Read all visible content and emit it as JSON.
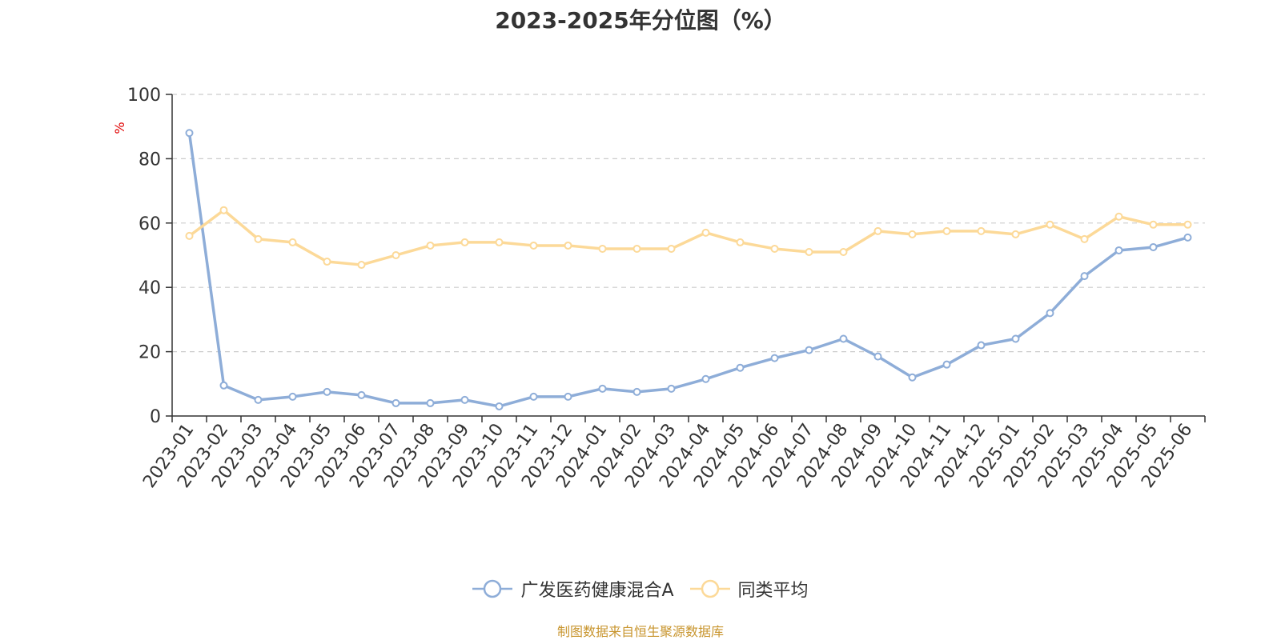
{
  "chart_data": {
    "type": "line",
    "title": "2023-2025年分位图（%）",
    "ylabel": "%",
    "xlabel": "",
    "ylim": [
      0,
      100
    ],
    "yticks": [
      0,
      20,
      40,
      60,
      80,
      100
    ],
    "grid": true,
    "legend_position": "bottom",
    "categories": [
      "2023-01",
      "2023-02",
      "2023-03",
      "2023-04",
      "2023-05",
      "2023-06",
      "2023-07",
      "2023-08",
      "2023-09",
      "2023-10",
      "2023-11",
      "2023-12",
      "2024-01",
      "2024-02",
      "2024-03",
      "2024-04",
      "2024-05",
      "2024-06",
      "2024-07",
      "2024-08",
      "2024-09",
      "2024-10",
      "2024-11",
      "2024-12",
      "2025-01",
      "2025-02",
      "2025-03",
      "2025-04",
      "2025-05",
      "2025-06"
    ],
    "series": [
      {
        "name": "广发医药健康混合A",
        "color": "#8eadd8",
        "values": [
          88,
          9.5,
          5,
          6,
          7.5,
          6.5,
          4,
          4,
          5,
          3,
          6,
          6,
          8.5,
          7.5,
          8.5,
          11.5,
          15,
          18,
          20.5,
          24,
          18.5,
          12,
          16,
          22,
          24,
          32,
          43.5,
          51.5,
          52.5,
          55.5
        ]
      },
      {
        "name": "同类平均",
        "color": "#fcd998",
        "values": [
          56,
          64,
          55,
          54,
          48,
          47,
          50,
          53,
          54,
          54,
          53,
          53,
          52,
          52,
          52,
          57,
          54,
          52,
          51,
          51,
          57.5,
          56.5,
          57.5,
          57.5,
          56.5,
          59.5,
          55,
          62,
          59.5,
          59.5
        ]
      }
    ]
  },
  "source": "制图数据来自恒生聚源数据库",
  "colors": {
    "axis": "#333333",
    "grid": "#cccccc",
    "ylabel": "#e00000",
    "source": "#c8952e"
  }
}
